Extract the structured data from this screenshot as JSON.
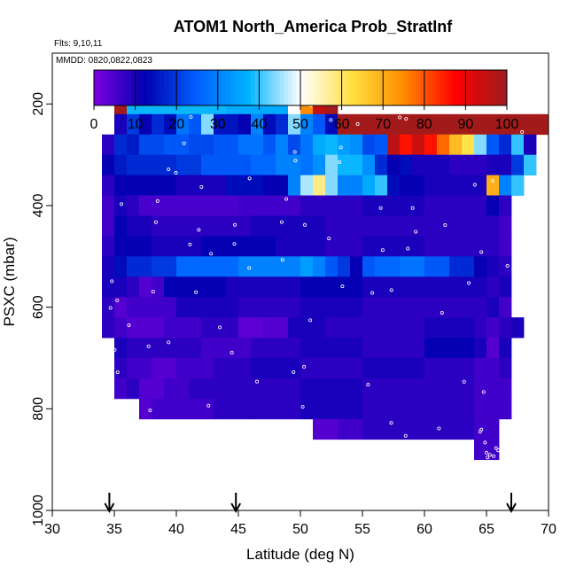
{
  "chart_data": {
    "type": "heatmap",
    "title": "ATOM1 North_America Prob_StratInf",
    "annotations": [
      "Flts: 9,10,11",
      "MMDD: 0820,0822,0823"
    ],
    "xlabel": "Latitude (deg N)",
    "ylabel": "PSXC (mbar)",
    "xlim": [
      30,
      70
    ],
    "ylim": [
      1000,
      100
    ],
    "y_reversed": true,
    "x_ticks": [
      "30",
      "35",
      "40",
      "45",
      "50",
      "55",
      "60",
      "65",
      "70"
    ],
    "y_ticks": [
      "200",
      "400",
      "600",
      "800",
      "1000"
    ],
    "colorbar": {
      "ticks": [
        "0",
        "10",
        "20",
        "30",
        "40",
        "50",
        "60",
        "70",
        "80",
        "90",
        "100"
      ],
      "range": [
        0,
        100
      ],
      "colors": [
        "#7b00e0",
        "#0000b0",
        "#0060ff",
        "#00b4ff",
        "#ffffff",
        "#ffe040",
        "#ff8c00",
        "#ff0000",
        "#9b1c1c"
      ]
    },
    "x_bin_deg": 1,
    "y_bin_mbar": 40,
    "rows": [
      {
        "p": 200,
        "cells": [
          [
            35,
            36,
            99
          ],
          [
            36,
            44,
            38
          ],
          [
            44,
            49,
            36
          ],
          [
            49,
            50,
            50
          ],
          [
            50,
            51,
            75
          ],
          [
            51,
            52,
            95
          ],
          [
            52,
            53,
            99
          ]
        ]
      },
      {
        "p": 240,
        "cells": [
          [
            35,
            36,
            10
          ],
          [
            36,
            37,
            20
          ],
          [
            37,
            38,
            12
          ],
          [
            38,
            39,
            18
          ],
          [
            39,
            40,
            14
          ],
          [
            40,
            41,
            28
          ],
          [
            41,
            42,
            24
          ],
          [
            42,
            43,
            44
          ],
          [
            43,
            44,
            15
          ],
          [
            44,
            45,
            15
          ],
          [
            45,
            46,
            12
          ],
          [
            46,
            47,
            30
          ],
          [
            47,
            48,
            14
          ],
          [
            48,
            49,
            18
          ],
          [
            49,
            50,
            44
          ],
          [
            50,
            51,
            30
          ],
          [
            51,
            52,
            24
          ],
          [
            52,
            53,
            14
          ],
          [
            53,
            69,
            99
          ],
          [
            69,
            70,
            99
          ]
        ]
      },
      {
        "p": 280,
        "cells": [
          [
            34,
            35,
            8
          ],
          [
            35,
            36,
            18
          ],
          [
            36,
            37,
            16
          ],
          [
            37,
            39,
            22
          ],
          [
            39,
            41,
            24
          ],
          [
            41,
            43,
            22
          ],
          [
            43,
            45,
            24
          ],
          [
            45,
            47,
            28
          ],
          [
            47,
            48,
            24
          ],
          [
            48,
            49,
            30
          ],
          [
            49,
            50,
            22
          ],
          [
            50,
            51,
            28
          ],
          [
            51,
            52,
            36
          ],
          [
            52,
            53,
            38
          ],
          [
            53,
            54,
            34
          ],
          [
            54,
            55,
            32
          ],
          [
            55,
            56,
            22
          ],
          [
            56,
            57,
            24
          ],
          [
            57,
            58,
            96
          ],
          [
            58,
            59,
            86
          ],
          [
            59,
            60,
            94
          ],
          [
            60,
            61,
            86
          ],
          [
            61,
            62,
            78
          ],
          [
            62,
            63,
            68
          ],
          [
            63,
            64,
            62
          ],
          [
            64,
            65,
            44
          ],
          [
            65,
            66,
            24
          ],
          [
            66,
            67,
            18
          ],
          [
            67,
            68,
            40
          ],
          [
            68,
            69,
            10
          ]
        ]
      },
      {
        "p": 320,
        "cells": [
          [
            34,
            35,
            12
          ],
          [
            35,
            36,
            16
          ],
          [
            36,
            40,
            18
          ],
          [
            40,
            42,
            20
          ],
          [
            42,
            46,
            24
          ],
          [
            46,
            48,
            26
          ],
          [
            48,
            50,
            30
          ],
          [
            50,
            51,
            28
          ],
          [
            51,
            52,
            32
          ],
          [
            52,
            53,
            44
          ],
          [
            53,
            55,
            38
          ],
          [
            55,
            56,
            32
          ],
          [
            56,
            57,
            18
          ],
          [
            57,
            58,
            12
          ],
          [
            58,
            59,
            14
          ],
          [
            59,
            62,
            10
          ],
          [
            62,
            65,
            8
          ],
          [
            65,
            67,
            10
          ],
          [
            67,
            68,
            20
          ],
          [
            68,
            69,
            40
          ]
        ]
      },
      {
        "p": 360,
        "cells": [
          [
            34,
            35,
            8
          ],
          [
            35,
            40,
            12
          ],
          [
            40,
            44,
            10
          ],
          [
            44,
            47,
            14
          ],
          [
            47,
            49,
            12
          ],
          [
            49,
            50,
            30
          ],
          [
            50,
            51,
            46
          ],
          [
            51,
            52,
            58
          ],
          [
            52,
            53,
            44
          ],
          [
            53,
            55,
            30
          ],
          [
            55,
            56,
            36
          ],
          [
            56,
            57,
            40
          ],
          [
            57,
            58,
            14
          ],
          [
            58,
            60,
            12
          ],
          [
            60,
            65,
            10
          ],
          [
            65,
            66,
            70
          ],
          [
            66,
            67,
            30
          ],
          [
            67,
            68,
            40
          ]
        ]
      },
      {
        "p": 400,
        "cells": [
          [
            34,
            35,
            6
          ],
          [
            35,
            36,
            10
          ],
          [
            36,
            37,
            8
          ],
          [
            37,
            45,
            5
          ],
          [
            45,
            50,
            6
          ],
          [
            50,
            55,
            8
          ],
          [
            55,
            60,
            10
          ],
          [
            60,
            63,
            8
          ],
          [
            63,
            65,
            8
          ],
          [
            65,
            66,
            12
          ],
          [
            66,
            67,
            8
          ]
        ]
      },
      {
        "p": 440,
        "cells": [
          [
            34,
            35,
            6
          ],
          [
            35,
            36,
            12
          ],
          [
            36,
            38,
            10
          ],
          [
            38,
            40,
            8
          ],
          [
            40,
            46,
            8
          ],
          [
            46,
            52,
            10
          ],
          [
            52,
            58,
            8
          ],
          [
            58,
            63,
            8
          ],
          [
            63,
            66,
            8
          ],
          [
            66,
            67,
            6
          ]
        ]
      },
      {
        "p": 480,
        "cells": [
          [
            34,
            35,
            8
          ],
          [
            35,
            38,
            12
          ],
          [
            38,
            42,
            10
          ],
          [
            42,
            48,
            12
          ],
          [
            48,
            52,
            10
          ],
          [
            52,
            55,
            8
          ],
          [
            55,
            60,
            10
          ],
          [
            60,
            65,
            8
          ],
          [
            65,
            66,
            8
          ],
          [
            66,
            67,
            6
          ]
        ]
      },
      {
        "p": 520,
        "cells": [
          [
            34,
            35,
            10
          ],
          [
            35,
            36,
            14
          ],
          [
            36,
            38,
            18
          ],
          [
            38,
            40,
            20
          ],
          [
            40,
            45,
            26
          ],
          [
            45,
            50,
            30
          ],
          [
            50,
            51,
            34
          ],
          [
            51,
            52,
            30
          ],
          [
            52,
            53,
            24
          ],
          [
            53,
            54,
            20
          ],
          [
            54,
            55,
            12
          ],
          [
            55,
            56,
            24
          ],
          [
            56,
            58,
            26
          ],
          [
            58,
            60,
            28
          ],
          [
            60,
            62,
            24
          ],
          [
            62,
            64,
            18
          ],
          [
            64,
            65,
            12
          ],
          [
            65,
            66,
            10
          ],
          [
            66,
            67,
            8
          ]
        ]
      },
      {
        "p": 560,
        "cells": [
          [
            34,
            35,
            10
          ],
          [
            35,
            36,
            10
          ],
          [
            36,
            37,
            8
          ],
          [
            37,
            38,
            4
          ],
          [
            38,
            39,
            6
          ],
          [
            39,
            44,
            12
          ],
          [
            44,
            50,
            10
          ],
          [
            50,
            55,
            12
          ],
          [
            55,
            60,
            10
          ],
          [
            60,
            65,
            10
          ],
          [
            65,
            66,
            8
          ],
          [
            66,
            67,
            10
          ]
        ]
      },
      {
        "p": 600,
        "cells": [
          [
            34,
            35,
            8
          ],
          [
            35,
            36,
            4
          ],
          [
            36,
            40,
            6
          ],
          [
            40,
            45,
            10
          ],
          [
            45,
            50,
            8
          ],
          [
            50,
            55,
            10
          ],
          [
            55,
            60,
            8
          ],
          [
            60,
            64,
            8
          ],
          [
            64,
            65,
            8
          ],
          [
            65,
            66,
            10
          ],
          [
            66,
            67,
            6
          ]
        ]
      },
      {
        "p": 640,
        "cells": [
          [
            34,
            35,
            8
          ],
          [
            35,
            36,
            6
          ],
          [
            36,
            39,
            4
          ],
          [
            39,
            42,
            6
          ],
          [
            42,
            45,
            8
          ],
          [
            45,
            47,
            3
          ],
          [
            47,
            49,
            4
          ],
          [
            49,
            52,
            10
          ],
          [
            52,
            56,
            8
          ],
          [
            56,
            60,
            8
          ],
          [
            60,
            64,
            10
          ],
          [
            64,
            65,
            8
          ],
          [
            65,
            66,
            6
          ],
          [
            66,
            67,
            8
          ],
          [
            67,
            68,
            10
          ]
        ]
      },
      {
        "p": 680,
        "cells": [
          [
            35,
            36,
            10
          ],
          [
            36,
            39,
            8
          ],
          [
            39,
            42,
            8
          ],
          [
            42,
            46,
            6
          ],
          [
            46,
            50,
            8
          ],
          [
            50,
            55,
            10
          ],
          [
            55,
            60,
            8
          ],
          [
            60,
            64,
            12
          ],
          [
            64,
            65,
            10
          ],
          [
            65,
            66,
            4
          ],
          [
            66,
            67,
            10
          ]
        ]
      },
      {
        "p": 720,
        "cells": [
          [
            35,
            36,
            8
          ],
          [
            36,
            38,
            6
          ],
          [
            38,
            40,
            4
          ],
          [
            40,
            43,
            6
          ],
          [
            43,
            46,
            8
          ],
          [
            46,
            50,
            10
          ],
          [
            50,
            55,
            8
          ],
          [
            55,
            60,
            10
          ],
          [
            60,
            64,
            8
          ],
          [
            64,
            66,
            6
          ],
          [
            66,
            67,
            8
          ]
        ]
      },
      {
        "p": 760,
        "cells": [
          [
            35,
            36,
            6
          ],
          [
            36,
            37,
            8
          ],
          [
            37,
            39,
            4
          ],
          [
            39,
            41,
            6
          ],
          [
            41,
            45,
            8
          ],
          [
            45,
            50,
            8
          ],
          [
            50,
            55,
            10
          ],
          [
            55,
            60,
            8
          ],
          [
            60,
            64,
            8
          ],
          [
            64,
            67,
            6
          ]
        ]
      },
      {
        "p": 800,
        "cells": [
          [
            37,
            38,
            4
          ],
          [
            38,
            40,
            6
          ],
          [
            40,
            43,
            6
          ],
          [
            43,
            46,
            8
          ],
          [
            46,
            50,
            8
          ],
          [
            50,
            55,
            10
          ],
          [
            55,
            60,
            8
          ],
          [
            60,
            64,
            8
          ],
          [
            64,
            67,
            6
          ]
        ]
      },
      {
        "p": 840,
        "cells": [
          [
            51,
            53,
            4
          ],
          [
            53,
            55,
            6
          ],
          [
            55,
            58,
            8
          ],
          [
            58,
            60,
            8
          ],
          [
            60,
            64,
            8
          ],
          [
            64,
            66,
            6
          ]
        ]
      },
      {
        "p": 880,
        "cells": [
          [
            64,
            65,
            6
          ],
          [
            65,
            66,
            6
          ]
        ]
      }
    ],
    "flight_markers_lat": [
      34.6,
      44.8,
      67.0
    ]
  }
}
